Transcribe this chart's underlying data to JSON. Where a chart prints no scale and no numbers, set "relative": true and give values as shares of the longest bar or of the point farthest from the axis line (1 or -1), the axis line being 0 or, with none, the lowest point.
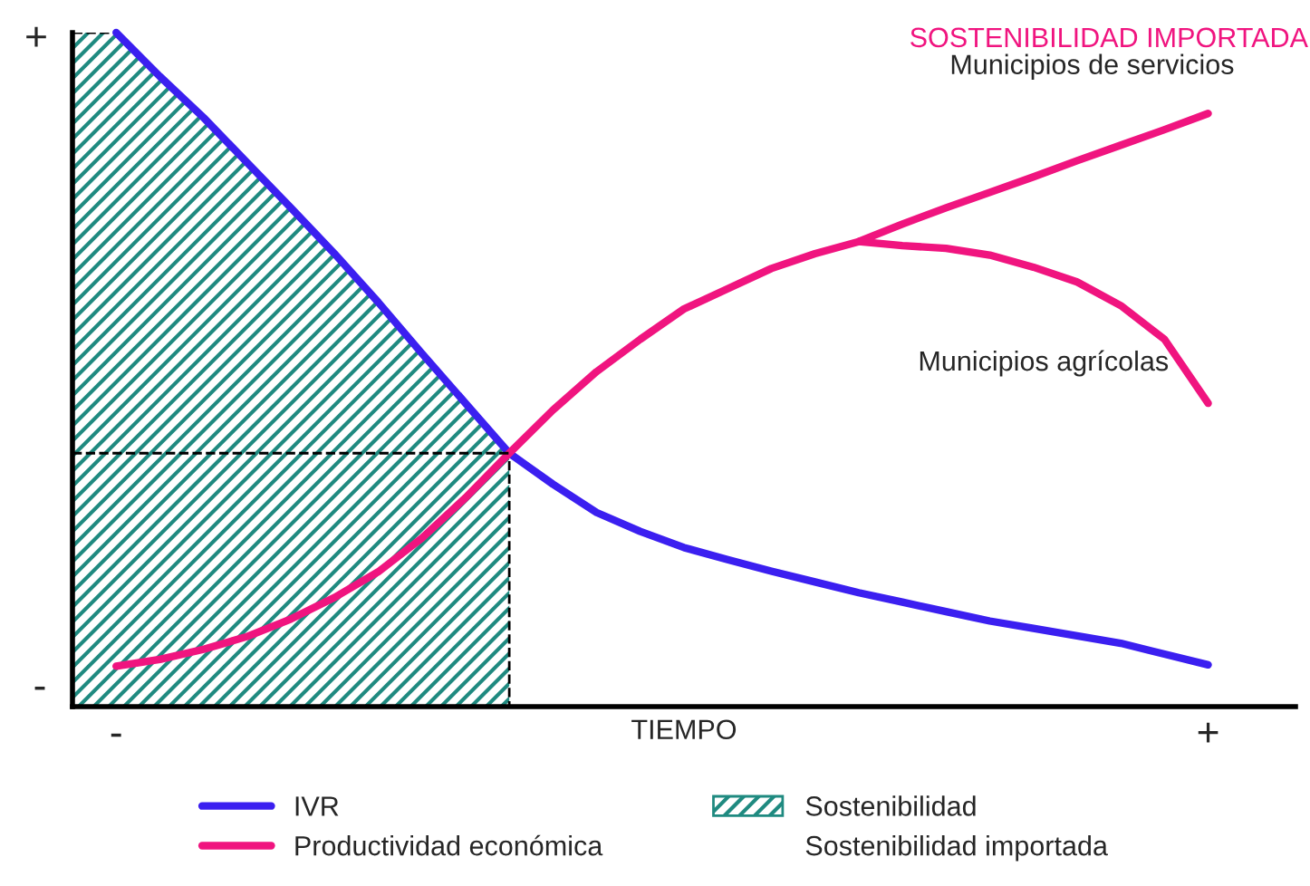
{
  "chart_data": {
    "type": "line",
    "relative": true,
    "xlabel": "TIEMPO",
    "grid": false,
    "legend": "bottom",
    "marker": "none",
    "categories": [
      null,
      "-",
      null,
      null,
      null,
      null,
      null,
      null,
      null,
      null,
      null,
      null,
      null,
      null,
      null,
      null,
      null,
      null,
      null,
      null,
      null,
      null,
      null,
      null,
      null,
      null,
      "+",
      null,
      null
    ],
    "annotations": [
      "SOSTENIBILIDAD IMPORTADA",
      "Sostenibilidad importada",
      "+",
      "-",
      {
        "text": "Municipios de servicios",
        "x": "+",
        "y": 0.88
      }
    ],
    "series": [
      {
        "name": "Sostenibilidad",
        "type": "area",
        "color": "#1f8a80",
        "values": [
          1.0,
          1.0,
          0.935,
          0.874,
          0.807,
          0.74,
          0.672,
          0.6,
          0.524,
          0.45,
          0.376,
          null,
          null,
          null,
          null,
          null,
          null,
          null,
          null,
          null,
          null,
          null,
          null,
          null,
          null,
          null,
          null,
          null,
          null
        ]
      },
      {
        "name": "IVR",
        "color": "#3b1ff0",
        "values": [
          null,
          1.0,
          0.935,
          0.874,
          0.807,
          0.74,
          0.672,
          0.6,
          0.524,
          0.45,
          0.376,
          0.33,
          0.288,
          0.26,
          0.236,
          0.218,
          0.201,
          0.185,
          0.169,
          0.155,
          0.141,
          0.127,
          0.116,
          0.105,
          0.094,
          0.078,
          0.062,
          null,
          null
        ]
      },
      {
        "name": "Productividad económica",
        "color": "#f0147f",
        "values": [
          null,
          0.06,
          0.07,
          0.085,
          0.104,
          0.13,
          0.162,
          0.2,
          0.25,
          0.31,
          0.376,
          0.44,
          0.497,
          0.545,
          0.59,
          0.62,
          0.65,
          0.672,
          0.69,
          0.716,
          0.74,
          0.763,
          0.786,
          0.81,
          0.833,
          0.856,
          0.88,
          null,
          null
        ]
      },
      {
        "name": "Municipios agrícolas",
        "color": "#f0147f",
        "values": [
          null,
          null,
          null,
          null,
          null,
          null,
          null,
          null,
          null,
          null,
          null,
          null,
          null,
          null,
          null,
          null,
          null,
          null,
          0.69,
          0.684,
          0.68,
          0.67,
          0.652,
          0.63,
          0.595,
          0.545,
          0.45,
          null,
          null
        ]
      },
      {
        "color": "#000000",
        "line_style": "dashed",
        "values": [
          0.376,
          0.376,
          0.376,
          0.376,
          0.376,
          0.376,
          0.376,
          0.376,
          0.376,
          0.376,
          0.376,
          null,
          null,
          null,
          null,
          null,
          null,
          null,
          null,
          null,
          null,
          null,
          null,
          null,
          null,
          null,
          null,
          null,
          null
        ]
      }
    ]
  }
}
